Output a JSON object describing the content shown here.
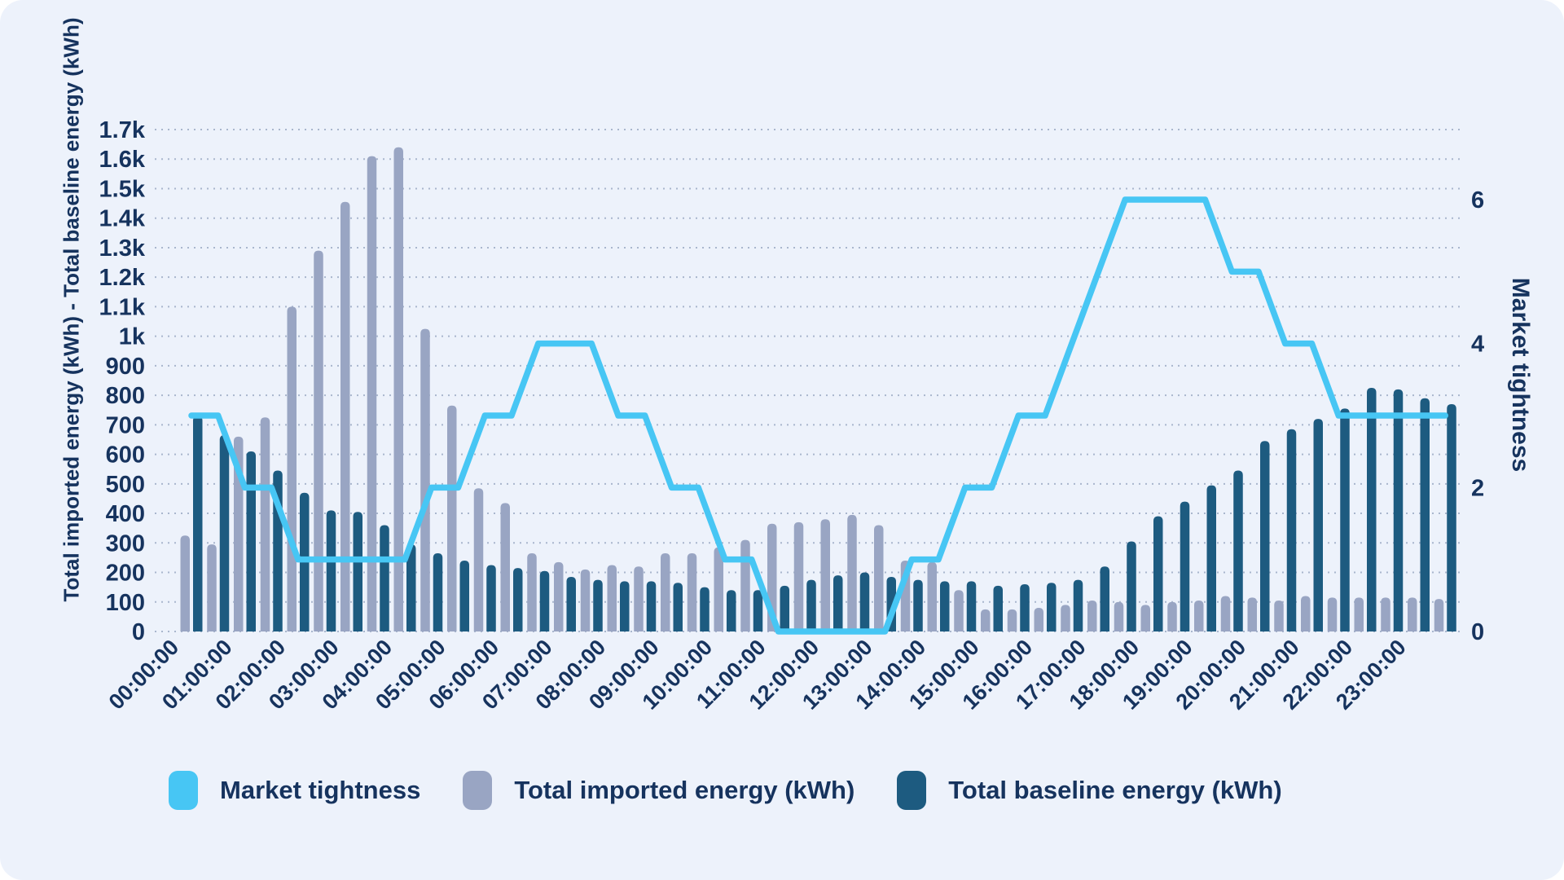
{
  "colors": {
    "background": "#edf2fb",
    "text": "#16335e",
    "gridline": "#a9b6cd",
    "market_tightness": "#47c6f4",
    "imported_energy": "#99a5c3",
    "baseline_energy": "#1d5b80"
  },
  "chart_data": {
    "type": "bar",
    "subtype": "dual-axis bar + stepped line, 30-minute bars with hourly ticks",
    "title": "",
    "legend_position": "bottom",
    "grid": "horizontal dotted",
    "x_axis": {
      "labels": [
        "00:00:00",
        "01:00:00",
        "02:00:00",
        "03:00:00",
        "04:00:00",
        "05:00:00",
        "06:00:00",
        "07:00:00",
        "08:00:00",
        "09:00:00",
        "10:00:00",
        "11:00:00",
        "12:00:00",
        "13:00:00",
        "14:00:00",
        "15:00:00",
        "16:00:00",
        "17:00:00",
        "18:00:00",
        "19:00:00",
        "20:00:00",
        "21:00:00",
        "22:00:00",
        "23:00:00"
      ]
    },
    "left_axis": {
      "title": "Total imported energy (kWh) - Total baseline energy (kWh)",
      "ticks": [
        "0",
        "100",
        "200",
        "300",
        "400",
        "500",
        "600",
        "700",
        "800",
        "900",
        "1k",
        "1.1k",
        "1.2k",
        "1.3k",
        "1.4k",
        "1.5k",
        "1.6k",
        "1.7k"
      ],
      "range": [
        0,
        1700
      ]
    },
    "right_axis": {
      "title": "Market tightness",
      "ticks": [
        "0",
        "2",
        "4",
        "6"
      ],
      "range": [
        0,
        6
      ]
    },
    "categories": [
      "00:00",
      "00:30",
      "01:00",
      "01:30",
      "02:00",
      "02:30",
      "03:00",
      "03:30",
      "04:00",
      "04:30",
      "05:00",
      "05:30",
      "06:00",
      "06:30",
      "07:00",
      "07:30",
      "08:00",
      "08:30",
      "09:00",
      "09:30",
      "10:00",
      "10:30",
      "11:00",
      "11:30",
      "12:00",
      "12:30",
      "13:00",
      "13:30",
      "14:00",
      "14:30",
      "15:00",
      "15:30",
      "16:00",
      "16:30",
      "17:00",
      "17:30",
      "18:00",
      "18:30",
      "19:00",
      "19:30",
      "20:00",
      "20:30",
      "21:00",
      "21:30",
      "22:00",
      "22:30",
      "23:00",
      "23:30"
    ],
    "series": [
      {
        "name": "Market tightness",
        "type": "line",
        "axis": "right",
        "color": "#47c6f4",
        "points": [
          [
            0,
            3
          ],
          [
            0.5,
            3
          ],
          [
            1,
            2
          ],
          [
            1.5,
            2
          ],
          [
            2,
            1
          ],
          [
            4,
            1
          ],
          [
            4.5,
            2
          ],
          [
            5,
            2
          ],
          [
            5.5,
            3
          ],
          [
            6,
            3
          ],
          [
            6.5,
            4
          ],
          [
            7.5,
            4
          ],
          [
            8,
            3
          ],
          [
            8.5,
            3
          ],
          [
            9,
            2
          ],
          [
            9.5,
            2
          ],
          [
            10,
            1
          ],
          [
            10.5,
            1
          ],
          [
            11,
            0
          ],
          [
            13,
            0
          ],
          [
            13.5,
            1
          ],
          [
            14,
            1
          ],
          [
            14.5,
            2
          ],
          [
            15,
            2
          ],
          [
            15.5,
            3
          ],
          [
            16,
            3
          ],
          [
            17.5,
            6
          ],
          [
            19,
            6
          ],
          [
            19.5,
            5
          ],
          [
            20,
            5
          ],
          [
            20.5,
            4
          ],
          [
            21,
            4
          ],
          [
            21.5,
            3
          ],
          [
            23.5,
            3
          ]
        ]
      },
      {
        "name": "Total imported energy (kWh)",
        "type": "bar",
        "axis": "left",
        "color": "#99a5c3",
        "values": [
          325,
          295,
          660,
          725,
          1100,
          1290,
          1455,
          1610,
          1640,
          1025,
          765,
          485,
          435,
          265,
          235,
          210,
          225,
          220,
          265,
          265,
          285,
          310,
          365,
          370,
          380,
          395,
          360,
          240,
          235,
          140,
          75,
          75,
          80,
          90,
          105,
          100,
          90,
          100,
          105,
          120,
          115,
          105,
          120,
          115,
          115,
          115,
          115,
          110
        ]
      },
      {
        "name": "Total baseline energy (kWh)",
        "type": "bar",
        "axis": "left",
        "color": "#1d5b80",
        "values": [
          730,
          665,
          610,
          545,
          470,
          410,
          405,
          360,
          295,
          265,
          240,
          225,
          215,
          205,
          185,
          175,
          170,
          170,
          165,
          150,
          140,
          140,
          155,
          175,
          190,
          200,
          185,
          175,
          170,
          170,
          155,
          160,
          165,
          175,
          220,
          305,
          390,
          440,
          495,
          545,
          645,
          685,
          720,
          755,
          825,
          820,
          790,
          770
        ]
      }
    ]
  },
  "legend": {
    "items": [
      {
        "label": "Market tightness"
      },
      {
        "label": "Total imported energy (kWh)"
      },
      {
        "label": "Total baseline energy (kWh)"
      }
    ]
  }
}
